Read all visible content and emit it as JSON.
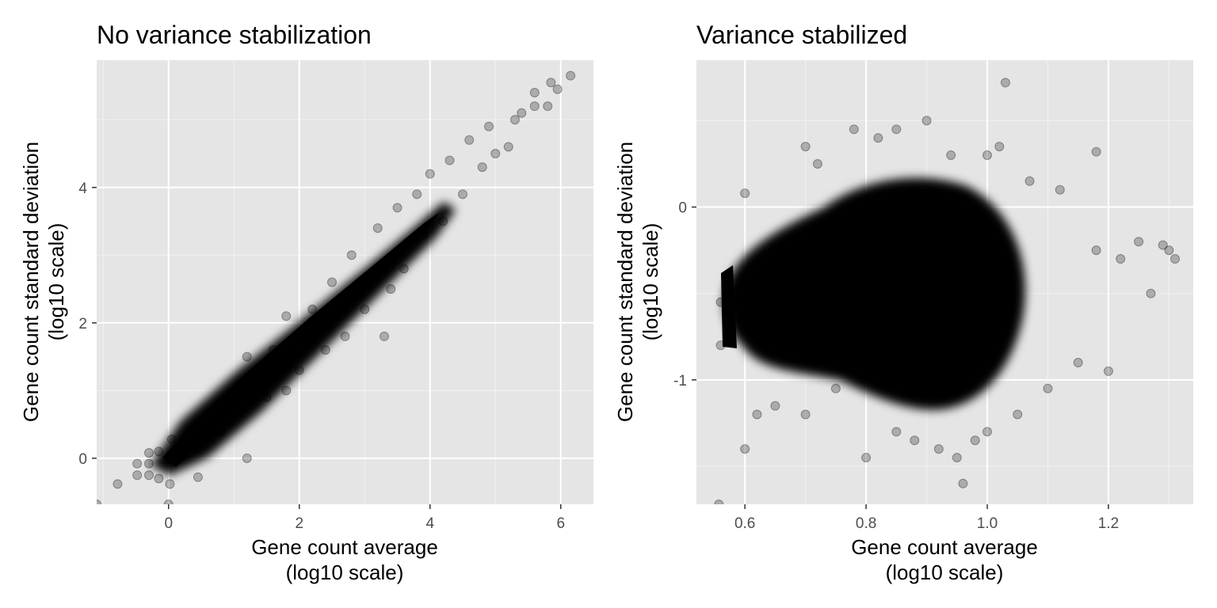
{
  "chart_data": [
    {
      "type": "scatter",
      "title": "No variance stabilization",
      "xlabel": [
        "Gene count average",
        "(log10 scale)"
      ],
      "ylabel": [
        "Gene count standard deviation",
        "(log10 scale)"
      ],
      "xlim": [
        -1.1,
        6.5
      ],
      "ylim": [
        -0.68,
        5.88
      ],
      "xticks": [
        0,
        2,
        4,
        6
      ],
      "xtick_labels": [
        "0",
        "2",
        "4",
        "6"
      ],
      "yticks": [
        0,
        2,
        4
      ],
      "ytick_labels": [
        "0",
        "2",
        "4"
      ],
      "panel_background": "#e5e5e5",
      "grid_color": "#ffffff",
      "point_color": "#000000",
      "point_alpha": 0.2,
      "trend": "dense cloud along y = x - 0.45 (approx.), widening at low x",
      "points": [
        [
          -1.1,
          -0.68
        ],
        [
          -0.78,
          -0.38
        ],
        [
          -0.48,
          -0.25
        ],
        [
          -0.48,
          -0.08
        ],
        [
          -0.3,
          -0.25
        ],
        [
          -0.3,
          -0.08
        ],
        [
          -0.3,
          0.08
        ],
        [
          -0.15,
          -0.3
        ],
        [
          -0.15,
          0.1
        ],
        [
          0.02,
          -0.38
        ],
        [
          0.0,
          -0.68
        ],
        [
          0.05,
          0.28
        ],
        [
          0.3,
          0.3
        ],
        [
          0.45,
          -0.28
        ],
        [
          0.6,
          0.55
        ],
        [
          0.8,
          0.4
        ],
        [
          1.0,
          0.8
        ],
        [
          1.2,
          0.0
        ],
        [
          1.2,
          1.5
        ],
        [
          1.5,
          0.9
        ],
        [
          1.6,
          1.6
        ],
        [
          1.8,
          1.0
        ],
        [
          1.8,
          2.1
        ],
        [
          2.0,
          1.3
        ],
        [
          2.2,
          2.2
        ],
        [
          2.4,
          1.6
        ],
        [
          2.5,
          2.6
        ],
        [
          2.7,
          1.8
        ],
        [
          2.8,
          3.0
        ],
        [
          3.0,
          2.2
        ],
        [
          3.2,
          3.4
        ],
        [
          3.3,
          1.8
        ],
        [
          3.4,
          2.5
        ],
        [
          3.5,
          3.7
        ],
        [
          3.6,
          2.8
        ],
        [
          3.8,
          3.9
        ],
        [
          3.9,
          3.3
        ],
        [
          4.0,
          4.2
        ],
        [
          4.2,
          3.5
        ],
        [
          4.3,
          4.4
        ],
        [
          4.5,
          3.9
        ],
        [
          4.6,
          4.7
        ],
        [
          4.8,
          4.3
        ],
        [
          4.9,
          4.9
        ],
        [
          5.0,
          4.5
        ],
        [
          5.2,
          4.6
        ],
        [
          5.3,
          5.0
        ],
        [
          5.4,
          5.1
        ],
        [
          5.6,
          5.2
        ],
        [
          5.6,
          5.4
        ],
        [
          5.8,
          5.2
        ],
        [
          5.85,
          5.55
        ],
        [
          5.95,
          5.45
        ],
        [
          6.15,
          5.65
        ]
      ]
    },
    {
      "type": "scatter",
      "title": "Variance stabilized",
      "xlabel": [
        "Gene count average",
        "(log10 scale)"
      ],
      "ylabel": [
        "Gene count standard deviation",
        "(log10 scale)"
      ],
      "xlim": [
        0.52,
        1.34
      ],
      "ylim": [
        -1.72,
        0.85
      ],
      "xticks": [
        0.6,
        0.8,
        1.0,
        1.2
      ],
      "xtick_labels": [
        "0.6",
        "0.8",
        "1.0",
        "1.2"
      ],
      "yticks": [
        0,
        -1
      ],
      "ytick_labels": [
        "0",
        "-1"
      ],
      "panel_background": "#e5e5e5",
      "grid_color": "#ffffff",
      "point_color": "#000000",
      "point_alpha": 0.2,
      "trend": "dense blob centred near x = 0.85, y = -0.45, spanning x 0.56–1.3 and y -1.6–0.7",
      "points": [
        [
          0.557,
          -1.72
        ],
        [
          0.56,
          -0.8
        ],
        [
          0.56,
          -0.55
        ],
        [
          0.6,
          -1.4
        ],
        [
          0.6,
          0.08
        ],
        [
          0.62,
          -1.2
        ],
        [
          0.65,
          -1.15
        ],
        [
          0.7,
          0.35
        ],
        [
          0.7,
          -1.2
        ],
        [
          0.72,
          0.25
        ],
        [
          0.75,
          -1.05
        ],
        [
          0.78,
          0.45
        ],
        [
          0.8,
          -1.45
        ],
        [
          0.82,
          0.4
        ],
        [
          0.85,
          0.45
        ],
        [
          0.85,
          -1.3
        ],
        [
          0.88,
          -1.35
        ],
        [
          0.9,
          0.5
        ],
        [
          0.92,
          -1.4
        ],
        [
          0.94,
          0.3
        ],
        [
          0.95,
          -1.45
        ],
        [
          0.96,
          -1.6
        ],
        [
          0.98,
          -1.35
        ],
        [
          1.0,
          0.3
        ],
        [
          1.0,
          -1.3
        ],
        [
          1.02,
          0.35
        ],
        [
          1.03,
          0.72
        ],
        [
          1.05,
          -1.2
        ],
        [
          1.07,
          0.15
        ],
        [
          1.1,
          -1.05
        ],
        [
          1.12,
          0.1
        ],
        [
          1.15,
          -0.9
        ],
        [
          1.18,
          0.32
        ],
        [
          1.18,
          -0.25
        ],
        [
          1.2,
          -0.95
        ],
        [
          1.22,
          -0.3
        ],
        [
          1.25,
          -0.2
        ],
        [
          1.27,
          -0.5
        ],
        [
          1.29,
          -0.22
        ],
        [
          1.3,
          -0.25
        ],
        [
          1.31,
          -0.3
        ]
      ]
    }
  ]
}
